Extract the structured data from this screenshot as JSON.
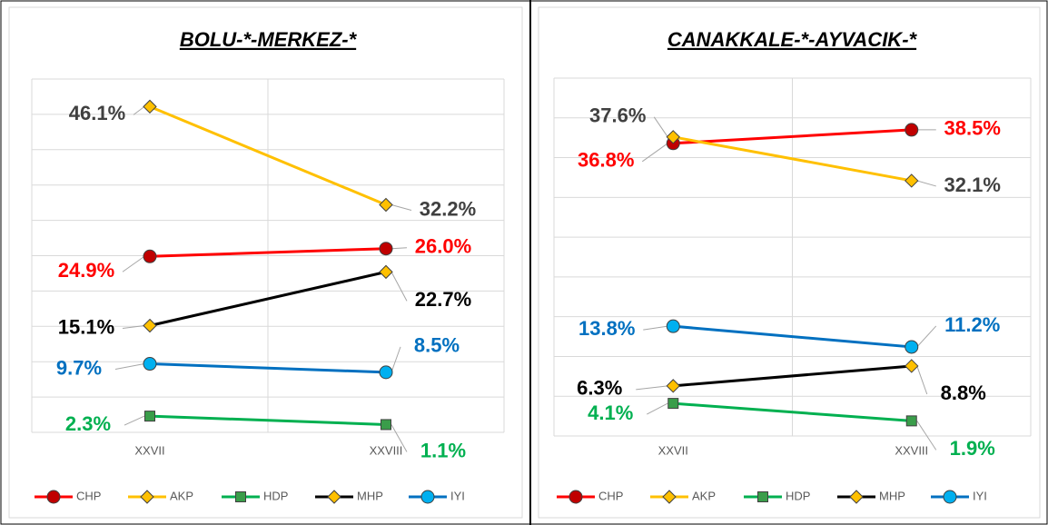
{
  "chart_data": [
    {
      "type": "line",
      "title": "BOLU-*-MERKEZ-*",
      "categories": [
        "XXVII",
        "XXVIII"
      ],
      "ylim": [
        0,
        50
      ],
      "yticks": [
        0,
        5,
        10,
        15,
        20,
        25,
        30,
        35,
        40,
        45,
        50
      ],
      "grid": true,
      "legend": "bottom",
      "series": [
        {
          "name": "CHP",
          "color": "#ff0000",
          "marker": "circle",
          "label_color": "#ff0000",
          "values": [
            24.9,
            26.0
          ],
          "value_labels": [
            "24.9%",
            "26.0%"
          ]
        },
        {
          "name": "AKP",
          "color": "#ffc000",
          "marker": "diamond",
          "label_color": "#404040",
          "values": [
            46.1,
            32.2
          ],
          "value_labels": [
            "46.1%",
            "32.2%"
          ]
        },
        {
          "name": "HDP",
          "color": "#00b050",
          "marker": "square",
          "label_color": "#00b050",
          "values": [
            2.3,
            1.1
          ],
          "value_labels": [
            "2.3%",
            "1.1%"
          ]
        },
        {
          "name": "MHP",
          "color": "#000000",
          "marker": "diamond",
          "label_color": "#000000",
          "values": [
            15.1,
            22.7
          ],
          "value_labels": [
            "15.1%",
            "22.7%"
          ]
        },
        {
          "name": "IYI",
          "color": "#0070c0",
          "marker": "circle",
          "label_color": "#0070c0",
          "values": [
            9.7,
            8.5
          ],
          "value_labels": [
            "9.7%",
            "8.5%"
          ]
        }
      ]
    },
    {
      "type": "line",
      "title": "CANAKKALE-*-AYVACIK-*",
      "categories": [
        "XXVII",
        "XXVIII"
      ],
      "ylim": [
        0,
        45
      ],
      "yticks": [
        0,
        5,
        10,
        15,
        20,
        25,
        30,
        35,
        40,
        45
      ],
      "grid": true,
      "legend": "bottom",
      "series": [
        {
          "name": "CHP",
          "color": "#ff0000",
          "marker": "circle",
          "label_color": "#ff0000",
          "values": [
            36.8,
            38.5
          ],
          "value_labels": [
            "36.8%",
            "38.5%"
          ]
        },
        {
          "name": "AKP",
          "color": "#ffc000",
          "marker": "diamond",
          "label_color": "#404040",
          "values": [
            37.6,
            32.1
          ],
          "value_labels": [
            "37.6%",
            "32.1%"
          ]
        },
        {
          "name": "HDP",
          "color": "#00b050",
          "marker": "square",
          "label_color": "#00b050",
          "values": [
            4.1,
            1.9
          ],
          "value_labels": [
            "4.1%",
            "1.9%"
          ]
        },
        {
          "name": "MHP",
          "color": "#000000",
          "marker": "diamond",
          "label_color": "#000000",
          "values": [
            6.3,
            8.8
          ],
          "value_labels": [
            "6.3%",
            "8.8%"
          ]
        },
        {
          "name": "IYI",
          "color": "#0070c0",
          "marker": "circle",
          "label_color": "#0070c0",
          "values": [
            13.8,
            11.2
          ],
          "value_labels": [
            "13.8%",
            "11.2%"
          ]
        }
      ]
    }
  ]
}
